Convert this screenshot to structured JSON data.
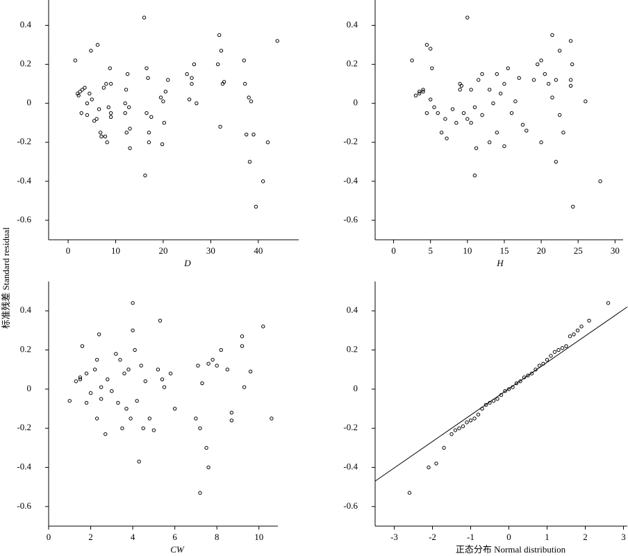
{
  "ylabel": "标准残差 Standard residual",
  "chart_data": [
    {
      "type": "scatter",
      "xlabel": "D",
      "xlabel_italic": true,
      "xlim": [
        -4.1,
        48.5
      ],
      "ylim": [
        -0.7,
        0.53
      ],
      "xticks": [
        0,
        10,
        20,
        30,
        40
      ],
      "yticks": [
        -0.6,
        -0.4,
        -0.2,
        0,
        0.2,
        0.4
      ],
      "series": [
        {
          "name": "D",
          "color": "#000000",
          "x": [
            1.5,
            2,
            2.2,
            2.5,
            2.8,
            3,
            3.5,
            4,
            4,
            4.5,
            4.8,
            5,
            5.5,
            6,
            6.2,
            6.5,
            6.8,
            7,
            7.5,
            7.8,
            8,
            8.2,
            8.5,
            8.8,
            9,
            9,
            12,
            12,
            12.2,
            12.3,
            12.5,
            12.8,
            13,
            13,
            16,
            16.2,
            16.5,
            16.5,
            16.8,
            17,
            19.5,
            19.8,
            20,
            20.2,
            20.5,
            21,
            25,
            25.5,
            26,
            26.5,
            27,
            31.5,
            31.8,
            32,
            32.2,
            32.5,
            32.8,
            37,
            37.2,
            37.5,
            38,
            38.2,
            38.5,
            39,
            39.5,
            41,
            42,
            44,
            9,
            17,
            26,
            17.5
          ],
          "values": [
            0.22,
            0.05,
            0.04,
            0.06,
            -0.05,
            0.07,
            0.08,
            -0.06,
            0,
            0.05,
            0.27,
            0.02,
            -0.09,
            -0.08,
            0.3,
            -0.03,
            -0.15,
            -0.17,
            0.08,
            -0.17,
            0.1,
            -0.2,
            -0.02,
            0.18,
            -0.07,
            -0.05,
            0,
            -0.05,
            0.07,
            -0.15,
            0.15,
            -0.02,
            -0.23,
            -0.13,
            0.44,
            -0.37,
            -0.05,
            0.18,
            0.13,
            -0.2,
            0.03,
            -0.21,
            0.01,
            -0.1,
            0.06,
            0.12,
            0.15,
            0.02,
            0.13,
            0.2,
            0,
            0.2,
            0.35,
            -0.12,
            0.27,
            0.1,
            0.11,
            0.22,
            0.1,
            -0.16,
            0.03,
            -0.3,
            0.01,
            -0.16,
            -0.53,
            -0.4,
            -0.2,
            0.32,
            0.1,
            -0.15,
            0.1,
            -0.07
          ]
        }
      ]
    },
    {
      "type": "scatter",
      "xlabel": "H",
      "xlabel_italic": true,
      "xlim": [
        -2.5,
        31.1
      ],
      "ylim": [
        -0.7,
        0.53
      ],
      "xticks": [
        0,
        5,
        10,
        15,
        20,
        25,
        30
      ],
      "yticks": [
        -0.6,
        -0.4,
        -0.2,
        0,
        0.2,
        0.4
      ],
      "series": [
        {
          "name": "H",
          "color": "#000000",
          "x": [
            2.5,
            3,
            3.5,
            3.5,
            4,
            4,
            4.5,
            4.5,
            5,
            5,
            5.2,
            5.5,
            6,
            6.5,
            7,
            7.2,
            8,
            8.5,
            9,
            9,
            9.5,
            10,
            10,
            10.5,
            11,
            11,
            11.2,
            11.5,
            12,
            12,
            13,
            13,
            13.5,
            14,
            14,
            14.5,
            15,
            15,
            15.5,
            16,
            16.5,
            17,
            17.5,
            18,
            19,
            19.5,
            20,
            20,
            20.5,
            21,
            21.5,
            21.5,
            22,
            22,
            22.5,
            22.5,
            23,
            24,
            24,
            24.2,
            24.3,
            24,
            26,
            28,
            10.5,
            9.2
          ],
          "values": [
            0.22,
            0.04,
            0.05,
            0.06,
            0.07,
            0.06,
            0.3,
            -0.05,
            0.28,
            0.02,
            0.18,
            -0.02,
            -0.05,
            -0.15,
            -0.08,
            -0.18,
            -0.03,
            -0.1,
            0.1,
            0.07,
            -0.05,
            0.44,
            -0.08,
            -0.1,
            -0.37,
            -0.02,
            -0.23,
            0.12,
            0.15,
            -0.06,
            0.07,
            -0.2,
            0,
            0.15,
            -0.15,
            0.05,
            0.1,
            -0.22,
            0.18,
            -0.05,
            0.01,
            0.13,
            -0.11,
            -0.14,
            0.12,
            0.2,
            0.22,
            -0.2,
            0.15,
            0.1,
            0.35,
            0.03,
            -0.3,
            0.12,
            0.27,
            -0.06,
            -0.15,
            0.32,
            0.09,
            0.2,
            -0.53,
            0.12,
            0.01,
            -0.4,
            0.07,
            0.09
          ]
        }
      ]
    },
    {
      "type": "scatter",
      "xlabel": "CW",
      "xlabel_italic": true,
      "xlim": [
        0,
        10.9
      ],
      "ylim": [
        -0.7,
        0.55
      ],
      "xticks": [
        0,
        2,
        4,
        6,
        8,
        10
      ],
      "yticks": [
        -0.6,
        -0.4,
        -0.2,
        0,
        0.2,
        0.4
      ],
      "series": [
        {
          "name": "CW",
          "color": "#000000",
          "x": [
            1,
            1.3,
            1.5,
            1.5,
            1.6,
            1.8,
            1.8,
            2,
            2.2,
            2.3,
            2.3,
            2.4,
            2.5,
            2.5,
            2.7,
            2.8,
            3,
            3.2,
            3.3,
            3.4,
            3.5,
            3.6,
            3.7,
            3.8,
            3.9,
            4,
            4,
            4.1,
            4.2,
            4.3,
            4.4,
            4.5,
            4.6,
            4.8,
            5,
            5.2,
            5.3,
            5.4,
            5.5,
            5.8,
            6,
            7,
            7.1,
            7.2,
            7.2,
            7.3,
            7.5,
            7.6,
            7.6,
            7.8,
            8,
            8.2,
            8.5,
            8.7,
            8.7,
            9.2,
            9.2,
            9.3,
            9.6,
            10.2,
            10.6
          ],
          "values": [
            -0.06,
            0.04,
            0.06,
            0.05,
            0.22,
            -0.07,
            0.08,
            -0.02,
            0.1,
            0.15,
            -0.15,
            0.28,
            0.01,
            -0.05,
            -0.23,
            0.05,
            -0.01,
            0.18,
            -0.07,
            0.15,
            -0.2,
            0.08,
            -0.1,
            0.1,
            -0.15,
            0.44,
            0.3,
            0.2,
            -0.06,
            -0.37,
            0.12,
            -0.2,
            0.04,
            -0.15,
            -0.21,
            0.1,
            0.35,
            0.05,
            0.01,
            0.08,
            -0.1,
            -0.15,
            0.12,
            -0.2,
            -0.53,
            0.03,
            -0.3,
            -0.4,
            0.13,
            0.15,
            0.12,
            0.2,
            0.1,
            -0.12,
            -0.16,
            0.27,
            0.22,
            0.01,
            0.09,
            0.32,
            -0.15
          ]
        }
      ]
    },
    {
      "type": "qq",
      "xlabel": "正态分布 Normal distribution",
      "xlabel_italic": false,
      "xlim": [
        -3.5,
        3.1
      ],
      "ylim": [
        -0.7,
        0.55
      ],
      "xticks": [
        -3,
        -2,
        -1,
        0,
        1,
        2,
        3
      ],
      "yticks": [
        -0.6,
        -0.4,
        -0.2,
        0,
        0.2,
        0.4
      ],
      "series": [
        {
          "name": "residual",
          "color": "#000000",
          "x": [
            -2.6,
            -2.1,
            -1.9,
            -1.7,
            -1.5,
            -1.4,
            -1.3,
            -1.2,
            -1.1,
            -1,
            -0.9,
            -0.8,
            -0.7,
            -0.6,
            -0.5,
            -0.4,
            -0.3,
            -0.2,
            -0.1,
            0,
            0.1,
            0.2,
            0.3,
            0.4,
            0.5,
            0.6,
            0.7,
            0.8,
            0.9,
            1,
            1.1,
            1.2,
            1.3,
            1.4,
            1.5,
            1.6,
            1.7,
            1.8,
            1.9,
            2.1,
            2.6
          ],
          "values": [
            -0.53,
            -0.4,
            -0.38,
            -0.3,
            -0.23,
            -0.21,
            -0.2,
            -0.19,
            -0.17,
            -0.16,
            -0.15,
            -0.13,
            -0.1,
            -0.08,
            -0.07,
            -0.06,
            -0.05,
            -0.03,
            -0.01,
            0,
            0.01,
            0.03,
            0.04,
            0.06,
            0.07,
            0.08,
            0.1,
            0.12,
            0.13,
            0.15,
            0.17,
            0.19,
            0.2,
            0.21,
            0.22,
            0.27,
            0.28,
            0.3,
            0.32,
            0.35,
            0.44
          ]
        },
        {
          "name": "reference",
          "color": "#000000",
          "x": [
            -3.5,
            3.1
          ],
          "values": [
            -0.47,
            0.42
          ]
        }
      ]
    }
  ]
}
